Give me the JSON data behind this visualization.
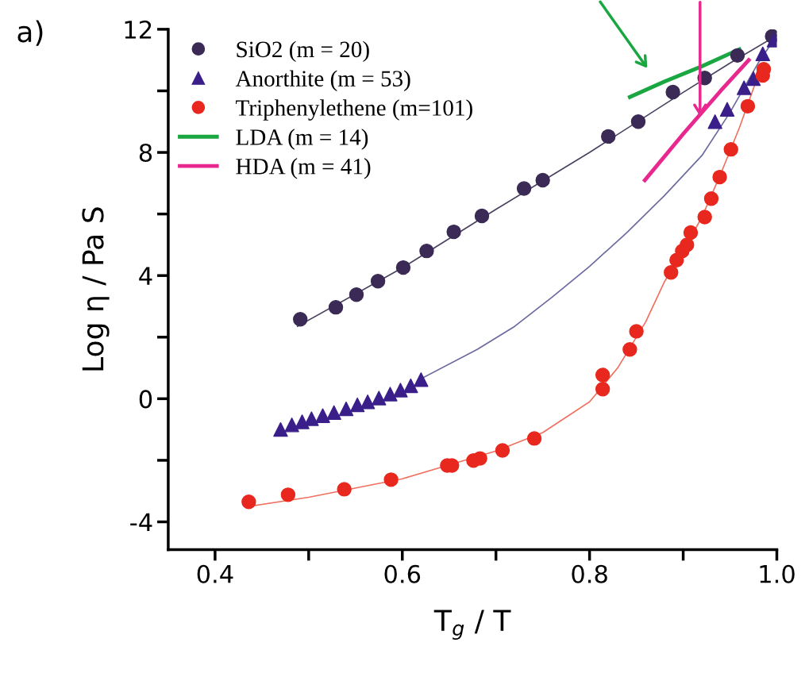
{
  "chart_data": {
    "type": "scatter",
    "xlabel": "T$_{g}$ / T",
    "ylabel": "Log η / Pa S",
    "annotations": [
      "a)"
    ],
    "xlim": [
      0.35,
      1.0
    ],
    "ylim": [
      -4.9,
      12
    ],
    "xticks": [
      0.4,
      {
        "value": 0.5,
        "label": null
      },
      0.6,
      {
        "value": 0.7,
        "label": null
      },
      0.8,
      {
        "value": 0.9,
        "label": null
      },
      {
        "value": 1.0,
        "label": "1.0"
      }
    ],
    "yticks": [
      -4,
      {
        "value": -2,
        "label": null
      },
      0,
      {
        "value": 2,
        "label": null
      },
      4,
      {
        "value": 6,
        "label": null
      },
      8,
      {
        "value": 10,
        "label": null
      },
      12
    ],
    "grid": false,
    "legend": "top left",
    "series": [
      {
        "type": "line",
        "color": "#4a4060",
        "x": [
          0.488,
          0.6,
          0.7,
          0.8,
          0.9,
          0.95,
          1.0
        ],
        "values": [
          2.35,
          4.25,
          6.15,
          8.0,
          9.95,
          10.9,
          11.8
        ]
      },
      {
        "type": "line",
        "color": "#6a6aa0",
        "x": [
          0.62,
          0.68,
          0.72,
          0.76,
          0.8,
          0.84,
          0.88,
          0.92,
          0.95,
          0.98,
          1.0
        ],
        "values": [
          0.65,
          1.6,
          2.35,
          3.3,
          4.3,
          5.4,
          6.6,
          7.9,
          9.3,
          10.9,
          11.8
        ]
      },
      {
        "type": "line",
        "color": "#f07060",
        "x": [
          0.436,
          0.5,
          0.6,
          0.65,
          0.7,
          0.75,
          0.8,
          0.83,
          0.86,
          0.88,
          0.9,
          0.92,
          0.94,
          0.96,
          0.98
        ],
        "values": [
          -3.5,
          -3.2,
          -2.6,
          -2.15,
          -1.7,
          -1.1,
          -0.1,
          1.0,
          2.5,
          3.8,
          4.8,
          5.9,
          7.3,
          8.8,
          10.5
        ]
      },
      {
        "name": "SiO2 (m = 20)",
        "marker": "circle",
        "color": "#3a2a55",
        "x": [
          0.491,
          0.529,
          0.551,
          0.574,
          0.601,
          0.626,
          0.655,
          0.685,
          0.73,
          0.75,
          0.82,
          0.852,
          0.889,
          0.923,
          0.958,
          0.995
        ],
        "values": [
          2.58,
          2.97,
          3.38,
          3.82,
          4.26,
          4.8,
          5.42,
          5.94,
          6.83,
          7.1,
          8.52,
          9.0,
          9.96,
          10.42,
          11.15,
          11.77
        ]
      },
      {
        "name": "Anorthite (m = 53)",
        "marker": "triangle",
        "color": "#3a1f8a",
        "x": [
          0.47,
          0.482,
          0.493,
          0.503,
          0.515,
          0.527,
          0.54,
          0.552,
          0.563,
          0.575,
          0.587,
          0.598,
          0.609,
          0.62,
          0.934,
          0.947,
          0.965,
          0.975,
          0.985,
          0.997
        ],
        "values": [
          -1.0,
          -0.85,
          -0.75,
          -0.65,
          -0.55,
          -0.45,
          -0.33,
          -0.2,
          -0.1,
          0.02,
          0.15,
          0.28,
          0.42,
          0.62,
          9.0,
          9.4,
          10.1,
          10.4,
          11.2,
          11.65
        ]
      },
      {
        "name": "Triphenylethene (m=101)",
        "marker": "circle",
        "color": "#e8281e",
        "x": [
          0.436,
          0.478,
          0.538,
          0.588,
          0.648,
          0.653,
          0.676,
          0.683,
          0.707,
          0.741,
          0.814,
          0.814,
          0.843,
          0.85,
          0.887,
          0.893,
          0.899,
          0.904,
          0.908,
          0.923,
          0.93,
          0.939,
          0.951,
          0.969,
          0.985,
          0.986
        ],
        "values": [
          -3.35,
          -3.12,
          -2.94,
          -2.63,
          -2.17,
          -2.17,
          -2.01,
          -1.94,
          -1.68,
          -1.29,
          0.77,
          0.31,
          1.6,
          2.19,
          4.1,
          4.5,
          4.8,
          5.0,
          5.4,
          5.9,
          6.5,
          7.2,
          8.1,
          9.5,
          10.5,
          10.7
        ]
      },
      {
        "name": "LDA (m = 14)",
        "type": "line",
        "color": "#1aa640",
        "x": [
          0.843,
          0.88,
          0.92,
          0.96
        ],
        "values": [
          9.8,
          10.3,
          10.8,
          11.35
        ]
      },
      {
        "name": "HDA (m = 41)",
        "type": "line",
        "color": "#e8288f",
        "x": [
          0.859,
          0.9,
          0.94,
          0.97
        ],
        "values": [
          7.1,
          8.6,
          10.0,
          11.0
        ]
      }
    ]
  }
}
